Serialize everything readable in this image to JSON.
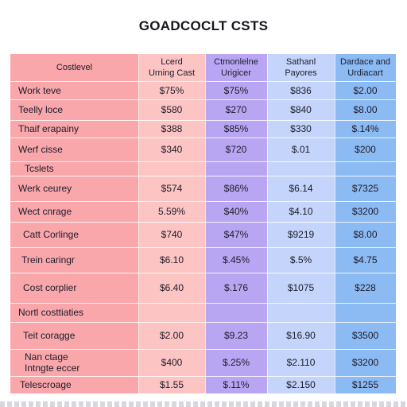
{
  "chart_data": {
    "type": "table",
    "title": "GOADCOCLT CSTS",
    "columns": [
      {
        "name": "row_header",
        "label_lines": [
          "Costlevel"
        ]
      },
      {
        "name": "c1",
        "label_lines": [
          "Lcerd",
          "Urning Cast"
        ],
        "color": "#fcc4c2"
      },
      {
        "name": "c2",
        "label_lines": [
          "Ctmonlelne",
          "Urigicer"
        ],
        "color": "#b9a6f2"
      },
      {
        "name": "c3",
        "label_lines": [
          "Sathanl",
          "Payores"
        ],
        "color": "#c4d4fa"
      },
      {
        "name": "c4",
        "label_lines": [
          "Dardace and",
          "Urdiacart"
        ],
        "color": "#8cbaf3"
      }
    ],
    "row_header_color": "#f9a7ab",
    "rows": [
      {
        "label": [
          "Work teve"
        ],
        "values": [
          "$75%",
          "$75%",
          "$836",
          "$2.00"
        ]
      },
      {
        "label": [
          "Teelly loce"
        ],
        "values": [
          "$580",
          "$270",
          "$840",
          "$8.00"
        ]
      },
      {
        "label": [
          "Thaif erapainy"
        ],
        "values": [
          "$388",
          "$85%",
          "$330",
          "$.14%"
        ]
      },
      {
        "label": [
          "Werf cisse"
        ],
        "values": [
          "$340",
          "$720",
          "$.01",
          "$200"
        ]
      },
      {
        "label": [
          "Tcslets"
        ],
        "values": [
          "",
          "",
          "",
          ""
        ]
      },
      {
        "label": [
          "Werk ceurey"
        ],
        "values": [
          "$574",
          "$86%",
          "$6.14",
          "$7325"
        ]
      },
      {
        "label": [
          "Wect cnrage"
        ],
        "values": [
          "5.59%",
          "$40%",
          "$4.10",
          "$3200"
        ]
      },
      {
        "label": [
          "Catt Corlinge"
        ],
        "values": [
          "$740",
          "$47%",
          "$9219",
          "$8.00"
        ]
      },
      {
        "label": [
          "Trein caringr"
        ],
        "values": [
          "$6.10",
          "$.45%",
          "$.5%",
          "$4.75"
        ]
      },
      {
        "label": [
          "Cost corplier"
        ],
        "values": [
          "$6.40",
          "$.176",
          "$1075",
          "$228"
        ]
      },
      {
        "label": [
          "Nortl costtiaties"
        ],
        "values": [
          "",
          "",
          "",
          ""
        ]
      },
      {
        "label": [
          "Teit coragge"
        ],
        "values": [
          "$2.00",
          "$9.23",
          "$16.90",
          "$3500"
        ]
      },
      {
        "label": [
          "Nan ctage",
          "Intngte eccer"
        ],
        "values": [
          "$400",
          "$.25%",
          "$2.110",
          "$3200"
        ]
      },
      {
        "label": [
          "Telescroage"
        ],
        "values": [
          "$1.55",
          "$.11%",
          "$2.150",
          "$1255"
        ]
      }
    ]
  }
}
